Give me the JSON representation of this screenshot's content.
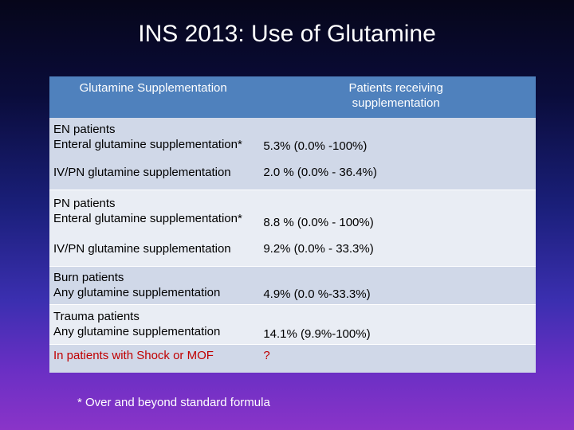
{
  "slide": {
    "title": "INS 2013: Use of Glutamine",
    "footnote": "* Over and beyond standard formula"
  },
  "table": {
    "headers": [
      "Glutamine Supplementation",
      "Patients receiving supplementation"
    ],
    "groups": [
      {
        "group": "EN patients",
        "label": "Enteral glutamine supplementation*",
        "value": "5.3% (0.0% -100%)"
      },
      {
        "group": "",
        "label": "IV/PN glutamine supplementation",
        "value": "2.0 % (0.0% - 36.4%)"
      },
      {
        "group": "PN patients",
        "label": "Enteral glutamine supplementation*",
        "value": "8.8 % (0.0% - 100%)"
      },
      {
        "group": "",
        "label": "IV/PN glutamine supplementation",
        "value": "9.2% (0.0% - 33.3%)"
      },
      {
        "group": "Burn patients",
        "label": "Any glutamine supplementation",
        "value": "4.9% (0.0 %-33.3%)"
      },
      {
        "group": "Trauma patients",
        "label": "Any glutamine supplementation",
        "value": "14.1% (9.9%-100%)"
      },
      {
        "group": "",
        "label": "In patients with Shock or MOF",
        "value": "?"
      }
    ]
  },
  "colors": {
    "header_bg": "#4f81bd",
    "row_dark": "#d0d8e8",
    "row_light": "#e9edf4",
    "highlight_text": "#c00000"
  }
}
